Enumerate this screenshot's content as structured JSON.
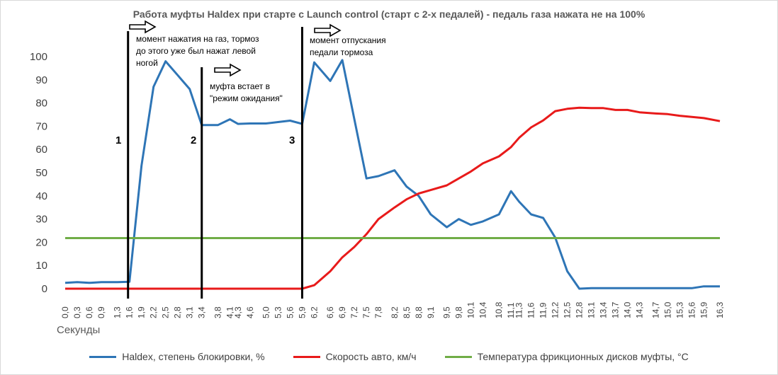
{
  "chart_data": {
    "type": "line",
    "title": "Работа муфты Haldex при старте с Launch control (старт с 2-х педалей) - педаль газа нажата не на 100%",
    "xlabel": "Секунды",
    "ylabel": "",
    "ylim": [
      0,
      100
    ],
    "yticks": [
      "0",
      "10",
      "20",
      "30",
      "40",
      "50",
      "60",
      "70",
      "80",
      "90",
      "100"
    ],
    "xticks": [
      "0,0",
      "0,3",
      "0,6",
      "0,9",
      "1,3",
      "1,6",
      "1,9",
      "2,2",
      "2,5",
      "2,8",
      "3,1",
      "3,4",
      "3,8",
      "4,1",
      "4,3",
      "4,6",
      "5,0",
      "5,3",
      "5,6",
      "5,9",
      "6,2",
      "6,6",
      "6,9",
      "7,2",
      "7,5",
      "7,8",
      "8,2",
      "8,5",
      "8,8",
      "9,1",
      "9,5",
      "9,8",
      "10,1",
      "10,4",
      "10,8",
      "11,1",
      "11,3",
      "11,6",
      "11,9",
      "12,2",
      "12,5",
      "12,8",
      "13,1",
      "13,4",
      "13,7",
      "14,0",
      "14,3",
      "14,7",
      "15,0",
      "15,3",
      "15,6",
      "15,9",
      "16,3"
    ],
    "x": [
      0.0,
      0.15,
      0.3,
      0.45,
      0.6,
      0.75,
      0.9,
      1.1,
      1.3,
      1.45,
      1.6,
      1.75,
      1.9,
      2.05,
      2.2,
      2.35,
      2.5,
      2.65,
      2.8,
      2.95,
      3.1,
      3.25,
      3.4,
      3.6,
      3.8,
      3.95,
      4.1,
      4.2,
      4.3,
      4.45,
      4.6,
      4.8,
      5.0,
      5.15,
      5.3,
      5.45,
      5.6,
      5.75,
      5.9,
      6.05,
      6.2,
      6.4,
      6.6,
      6.75,
      6.9,
      7.05,
      7.2,
      7.35,
      7.5,
      7.65,
      7.8,
      8.0,
      8.2,
      8.35,
      8.5,
      8.65,
      8.8,
      8.95,
      9.1,
      9.3,
      9.5,
      9.65,
      9.8,
      9.95,
      10.1,
      10.25,
      10.4,
      10.6,
      10.8,
      10.95,
      11.1,
      11.2,
      11.3,
      11.45,
      11.6,
      11.75,
      11.9,
      12.05,
      12.2,
      12.35,
      12.5,
      12.65,
      12.8,
      12.95,
      13.1,
      13.25,
      13.4,
      13.55,
      13.7,
      13.85,
      14.0,
      14.15,
      14.3,
      14.5,
      14.7,
      14.85,
      15.0,
      15.15,
      15.3,
      15.45,
      15.6,
      15.75,
      15.9,
      16.1,
      16.3
    ],
    "series": [
      {
        "name": "Haldex, степень блокировки, %",
        "color": "#2e75b6",
        "points": [
          [
            0.0,
            2.5
          ],
          [
            0.3,
            2.8
          ],
          [
            0.6,
            2.5
          ],
          [
            0.9,
            2.8
          ],
          [
            1.3,
            2.8
          ],
          [
            1.6,
            3
          ],
          [
            1.9,
            53
          ],
          [
            2.2,
            87
          ],
          [
            2.5,
            98
          ],
          [
            2.8,
            92
          ],
          [
            3.1,
            86
          ],
          [
            3.4,
            70.5
          ],
          [
            3.8,
            70.5
          ],
          [
            4.1,
            73
          ],
          [
            4.3,
            71
          ],
          [
            4.6,
            71.2
          ],
          [
            5.0,
            71.2
          ],
          [
            5.3,
            71.8
          ],
          [
            5.6,
            72.4
          ],
          [
            5.9,
            71
          ],
          [
            6.2,
            97.5
          ],
          [
            6.6,
            89.5
          ],
          [
            6.9,
            98.5
          ],
          [
            7.2,
            73
          ],
          [
            7.5,
            47.5
          ],
          [
            7.8,
            48.5
          ],
          [
            8.2,
            51
          ],
          [
            8.5,
            44
          ],
          [
            8.8,
            40
          ],
          [
            9.1,
            32
          ],
          [
            9.5,
            26.5
          ],
          [
            9.8,
            30
          ],
          [
            10.1,
            27.5
          ],
          [
            10.4,
            29
          ],
          [
            10.8,
            32
          ],
          [
            11.1,
            42
          ],
          [
            11.3,
            37.5
          ],
          [
            11.6,
            32
          ],
          [
            11.9,
            30.5
          ],
          [
            12.2,
            22
          ],
          [
            12.5,
            7.5
          ],
          [
            12.8,
            0
          ],
          [
            13.1,
            0.2
          ],
          [
            13.4,
            0.2
          ],
          [
            13.7,
            0.2
          ],
          [
            14.0,
            0.2
          ],
          [
            14.3,
            0.2
          ],
          [
            14.7,
            0.2
          ],
          [
            15.0,
            0.2
          ],
          [
            15.3,
            0.2
          ],
          [
            15.6,
            0.2
          ],
          [
            15.9,
            1
          ],
          [
            16.3,
            1
          ]
        ]
      },
      {
        "name": "Скорость авто, км/ч",
        "color": "#e81a1a",
        "points": [
          [
            0.0,
            0
          ],
          [
            0.3,
            0
          ],
          [
            0.6,
            0
          ],
          [
            0.9,
            0
          ],
          [
            1.3,
            0
          ],
          [
            1.6,
            0
          ],
          [
            1.9,
            0
          ],
          [
            2.2,
            0
          ],
          [
            2.5,
            0
          ],
          [
            2.8,
            0
          ],
          [
            3.1,
            0
          ],
          [
            3.4,
            0
          ],
          [
            3.8,
            0
          ],
          [
            4.1,
            0
          ],
          [
            4.3,
            0
          ],
          [
            4.6,
            0
          ],
          [
            5.0,
            0
          ],
          [
            5.3,
            0
          ],
          [
            5.6,
            0
          ],
          [
            5.9,
            0
          ],
          [
            6.2,
            1.5
          ],
          [
            6.6,
            7.5
          ],
          [
            6.9,
            13.5
          ],
          [
            7.2,
            18
          ],
          [
            7.5,
            23.5
          ],
          [
            7.8,
            30
          ],
          [
            8.2,
            35
          ],
          [
            8.5,
            38.5
          ],
          [
            8.8,
            41
          ],
          [
            9.1,
            42.5
          ],
          [
            9.5,
            44.5
          ],
          [
            9.8,
            47.5
          ],
          [
            10.1,
            50.5
          ],
          [
            10.4,
            54
          ],
          [
            10.8,
            57
          ],
          [
            11.1,
            61
          ],
          [
            11.3,
            65
          ],
          [
            11.6,
            69.5
          ],
          [
            11.9,
            72.5
          ],
          [
            12.2,
            76.5
          ],
          [
            12.5,
            77.5
          ],
          [
            12.8,
            78
          ],
          [
            13.1,
            77.8
          ],
          [
            13.4,
            77.8
          ],
          [
            13.7,
            77
          ],
          [
            14.0,
            77
          ],
          [
            14.3,
            76
          ],
          [
            14.7,
            75.5
          ],
          [
            15.0,
            75.2
          ],
          [
            15.3,
            74.5
          ],
          [
            15.6,
            74
          ],
          [
            15.9,
            73.5
          ],
          [
            16.3,
            72.2
          ]
        ]
      },
      {
        "name": "Температура фрикционных дисков муфты, °C",
        "color": "#70ad47",
        "points": [
          [
            0.0,
            21.8
          ],
          [
            16.3,
            21.8
          ]
        ]
      }
    ],
    "markers": [
      {
        "label": "1",
        "x": 1.6
      },
      {
        "label": "2",
        "x": 3.4
      },
      {
        "label": "3",
        "x": 5.9
      }
    ],
    "annotations": [
      {
        "lines": [
          "момент нажатия на газ, тормоз",
          "до этого уже был нажат левой",
          "ногой"
        ]
      },
      {
        "lines": [
          "муфта встает в",
          "\"режим ожидания\""
        ]
      },
      {
        "lines": [
          "момент отпускания",
          "педали тормоза"
        ]
      }
    ],
    "grid": false,
    "legend_position": "bottom"
  }
}
